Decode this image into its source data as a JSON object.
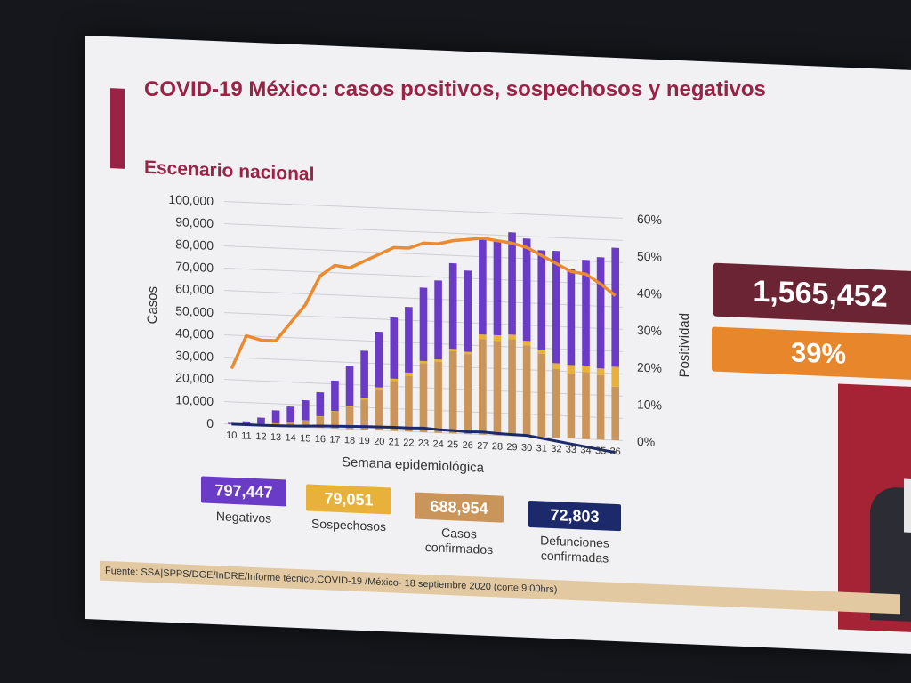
{
  "title": "COVID-19 México: casos positivos, sospechosos y negativos",
  "subtitle": "Escenario nacional",
  "colors": {
    "negativos": "#6a3bc7",
    "sospechosos": "#e8b13a",
    "confirmados": "#c9955a",
    "defunciones": "#1c2a6b",
    "positividad": "#ec8a2f",
    "total_box": "#6b2433",
    "pct_box": "#e8862c",
    "accent": "#9b2247"
  },
  "chart_data": {
    "type": "bar",
    "stacked": true,
    "xlabel": "Semana epidemiológica",
    "ylabel": "Casos",
    "y2label": "Positividad",
    "ylim": [
      0,
      100000
    ],
    "y2lim": [
      0,
      60
    ],
    "yticks": [
      "0",
      "10,000",
      "20,000",
      "30,000",
      "40,000",
      "50,000",
      "60,000",
      "70,000",
      "80,000",
      "90,000",
      "100,000"
    ],
    "y2ticks": [
      "0%",
      "10%",
      "20%",
      "30%",
      "40%",
      "50%",
      "60%"
    ],
    "categories": [
      "10",
      "11",
      "12",
      "13",
      "14",
      "15",
      "16",
      "17",
      "18",
      "19",
      "20",
      "21",
      "22",
      "23",
      "24",
      "25",
      "26",
      "27",
      "28",
      "29",
      "30",
      "31",
      "32",
      "33",
      "34",
      "35",
      "36"
    ],
    "series": [
      {
        "name": "Casos confirmados",
        "key": "confirmados",
        "values": [
          50,
          200,
          700,
          1200,
          2000,
          3000,
          5000,
          7500,
          10000,
          13500,
          18500,
          22500,
          25000,
          31000,
          32000,
          37000,
          36000,
          43000,
          42500,
          43500,
          41000,
          37500,
          31000,
          29000,
          30000,
          29000,
          24000
        ]
      },
      {
        "name": "Sospechosos",
        "key": "sospechosos",
        "values": [
          0,
          0,
          0,
          0,
          0,
          100,
          200,
          300,
          500,
          700,
          800,
          1000,
          1500,
          1000,
          1000,
          1000,
          1000,
          2000,
          2500,
          2000,
          2000,
          1500,
          2500,
          4000,
          3000,
          3000,
          9000
        ]
      },
      {
        "name": "Negativos",
        "key": "negativos",
        "values": [
          500,
          1300,
          2800,
          5800,
          7000,
          9000,
          10800,
          13700,
          18000,
          21300,
          25000,
          27500,
          29500,
          33000,
          35500,
          38500,
          36500,
          43000,
          43000,
          46000,
          46000,
          45000,
          50500,
          43000,
          47500,
          50000,
          53500
        ]
      },
      {
        "name": "Defunciones confirmadas",
        "key": "defunciones",
        "type": "line",
        "values": [
          10,
          30,
          80,
          150,
          300,
          500,
          800,
          1000,
          1200,
          1400,
          1500,
          1600,
          1600,
          1800,
          1400,
          1300,
          1000,
          1200,
          800,
          600,
          500,
          -500,
          -1500,
          -2500,
          -3500,
          -4500,
          -5500
        ]
      },
      {
        "name": "Positividad",
        "key": "positividad",
        "type": "line",
        "axis": "y2",
        "values": [
          15,
          24,
          23,
          23,
          28,
          33,
          41,
          44,
          43.5,
          45.5,
          47.5,
          49.5,
          49.5,
          51,
          51,
          52,
          52.5,
          53,
          52.5,
          52,
          51,
          49,
          47,
          45,
          44.5,
          42,
          39
        ]
      }
    ]
  },
  "kpis": {
    "negativos": {
      "value": "797,447",
      "label": "Negativos"
    },
    "sospechosos": {
      "value": "79,051",
      "label": "Sospechosos"
    },
    "confirmados": {
      "value": "688,954",
      "label1": "Casos",
      "label2": "confirmados"
    },
    "defunciones": {
      "value": "72,803",
      "label1": "Defunciones",
      "label2": "confirmadas"
    }
  },
  "total": "1,565,452",
  "positividad_pct": "39%",
  "source": "Fuente: SSA|SPPS/DGE/InDRE/Informe técnico.COVID-19 /México- 18 septiembre 2020 (corte 9:00hrs)"
}
